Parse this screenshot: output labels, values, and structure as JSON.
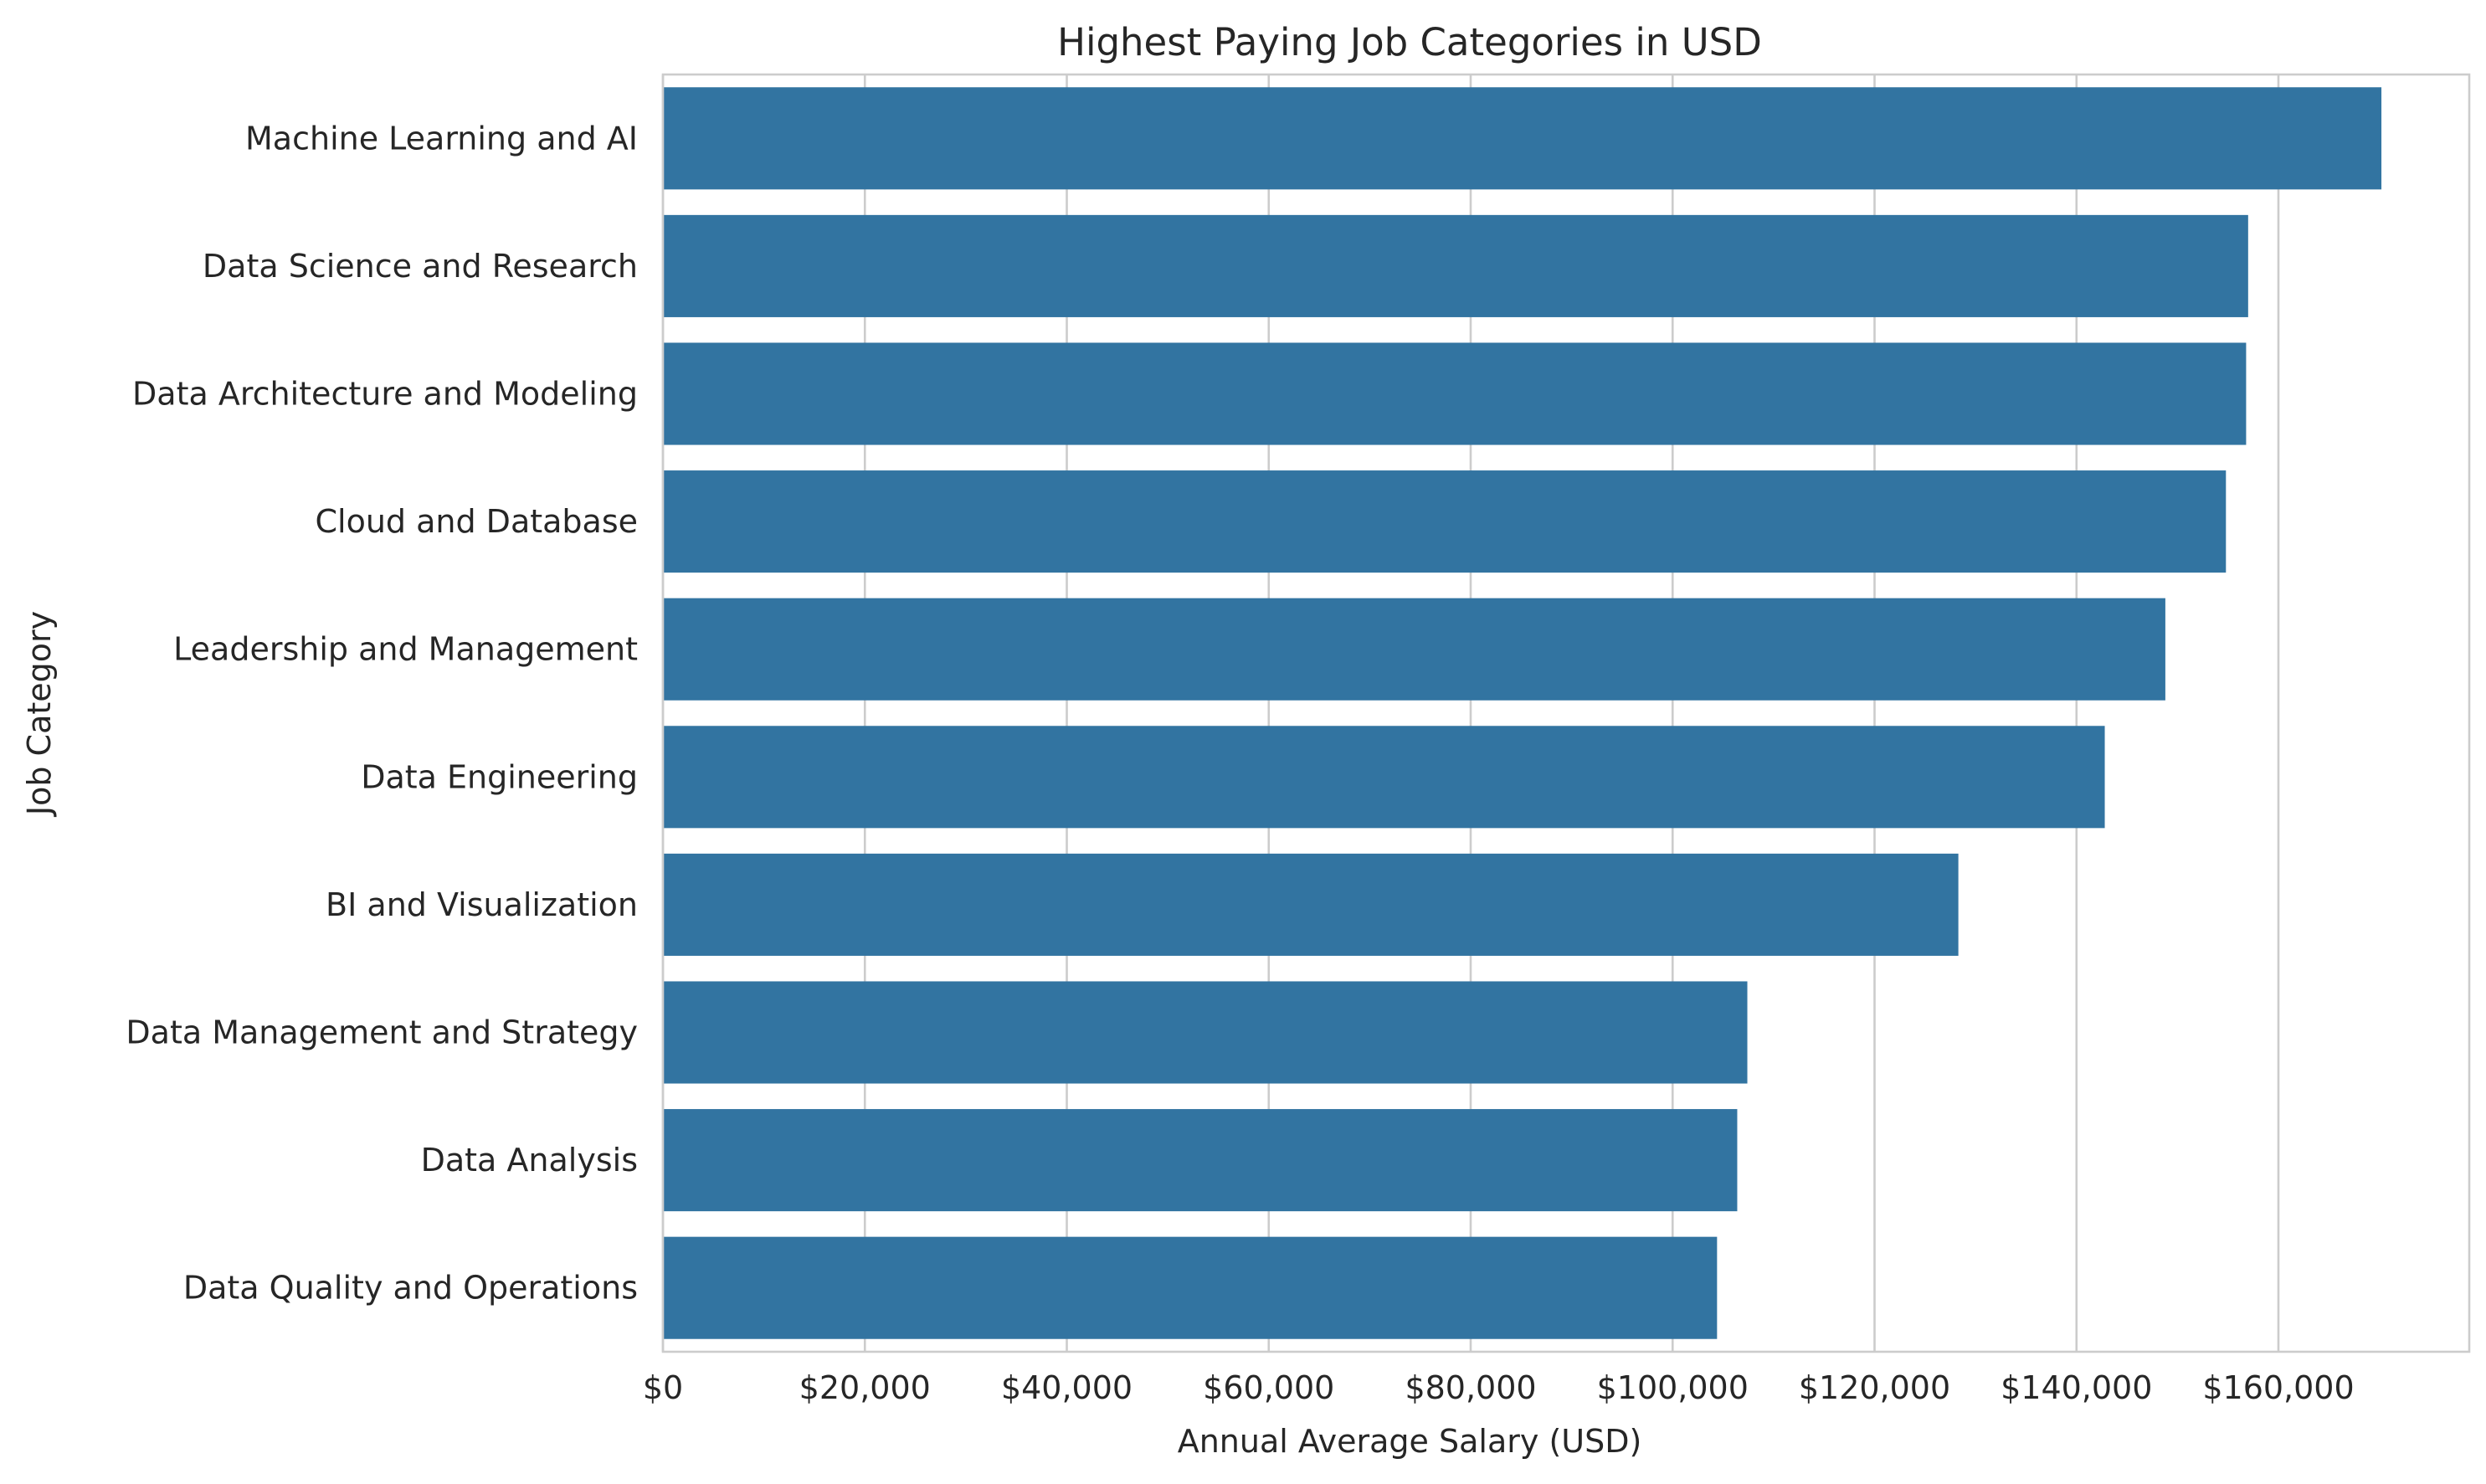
{
  "chart_data": {
    "type": "bar",
    "orientation": "horizontal",
    "title": "Highest Paying Job Categories in USD",
    "xlabel": "Annual Average Salary (USD)",
    "ylabel": "Job Category",
    "categories": [
      "Machine Learning and AI",
      "Data Science and Research",
      "Data Architecture and Modeling",
      "Cloud and Database",
      "Leadership and Management",
      "Data Engineering",
      "BI and Visualization",
      "Data Management and Strategy",
      "Data Analysis",
      "Data Quality and Operations"
    ],
    "values": [
      170200,
      157000,
      156800,
      154800,
      148800,
      142800,
      128300,
      107400,
      106400,
      104400
    ],
    "xlim": [
      0,
      178900
    ],
    "xticks": [
      0,
      20000,
      40000,
      60000,
      80000,
      100000,
      120000,
      140000,
      160000
    ],
    "xtick_labels": [
      "$0",
      "$20,000",
      "$40,000",
      "$60,000",
      "$80,000",
      "$100,000",
      "$120,000",
      "$140,000",
      "$160,000"
    ],
    "grid": "vertical",
    "legend": "none",
    "bar_color": "#3274a1",
    "grid_color": "#cccccc",
    "axes_edge_color": "#cccccc"
  }
}
